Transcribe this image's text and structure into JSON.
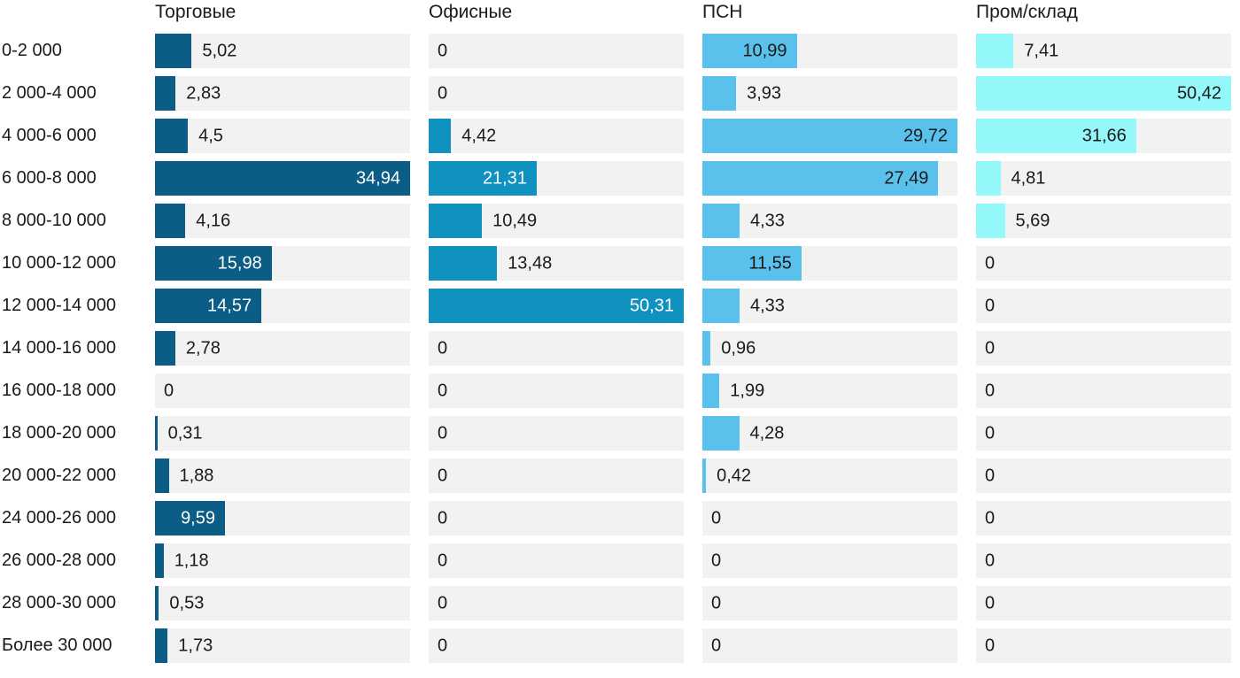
{
  "chart_data": {
    "type": "bar",
    "orientation": "horizontal",
    "layout": {
      "grid": false,
      "legend_position": "column headers on top",
      "scaling": "each column scaled independently to its own maximum value",
      "decimal_separator": ","
    },
    "track_color": "#f2f2f2",
    "text_color": "#1a1a1a",
    "background_color": "#ffffff",
    "categories": [
      "0-2 000",
      "2 000-4 000",
      "4 000-6 000",
      "6 000-8 000",
      "8 000-10 000",
      "10 000-12 000",
      "12 000-14 000",
      "14 000-16 000",
      "16 000-18 000",
      "18 000-20 000",
      "20 000-22 000",
      "24 000-26 000",
      "26 000-28 000",
      "28 000-30 000",
      "Более 30 000"
    ],
    "column_max": [
      34.94,
      50.31,
      29.72,
      50.42
    ],
    "series": [
      {
        "name": "Торговые",
        "color": "#0c5d85",
        "label_inside_color": "#ffffff",
        "values": [
          5.02,
          2.83,
          4.5,
          34.94,
          4.16,
          15.98,
          14.57,
          2.78,
          0,
          0.31,
          1.88,
          9.59,
          1.18,
          0.53,
          1.73
        ],
        "labels": [
          "5,02",
          "2,83",
          "4,5",
          "34,94",
          "4,16",
          "15,98",
          "14,57",
          "2,78",
          "0",
          "0,31",
          "1,88",
          "9,59",
          "1,18",
          "0,53",
          "1,73"
        ]
      },
      {
        "name": "Офисные",
        "color": "#1092c1",
        "label_inside_color": "#ffffff",
        "values": [
          0,
          0,
          4.42,
          21.31,
          10.49,
          13.48,
          50.31,
          0,
          0,
          0,
          0,
          0,
          0,
          0,
          0
        ],
        "labels": [
          "0",
          "0",
          "4,42",
          "21,31",
          "10,49",
          "13,48",
          "50,31",
          "0",
          "0",
          "0",
          "0",
          "0",
          "0",
          "0",
          "0"
        ]
      },
      {
        "name": "ПСН",
        "color": "#5ac1ec",
        "label_inside_color": "#1a1a1a",
        "values": [
          10.99,
          3.93,
          29.72,
          27.49,
          4.33,
          11.55,
          4.33,
          0.96,
          1.99,
          4.28,
          0.42,
          0,
          0,
          0,
          0
        ],
        "labels": [
          "10,99",
          "3,93",
          "29,72",
          "27,49",
          "4,33",
          "11,55",
          "4,33",
          "0,96",
          "1,99",
          "4,28",
          "0,42",
          "0",
          "0",
          "0",
          "0"
        ]
      },
      {
        "name": "Пром/склад",
        "color": "#94f7f9",
        "label_inside_color": "#1a1a1a",
        "values": [
          7.41,
          50.42,
          31.66,
          4.81,
          5.69,
          0,
          0,
          0,
          0,
          0,
          0,
          0,
          0,
          0,
          0
        ],
        "labels": [
          "7,41",
          "50,42",
          "31,66",
          "4,81",
          "5,69",
          "0",
          "0",
          "0",
          "0",
          "0",
          "0",
          "0",
          "0",
          "0",
          "0"
        ]
      }
    ]
  }
}
